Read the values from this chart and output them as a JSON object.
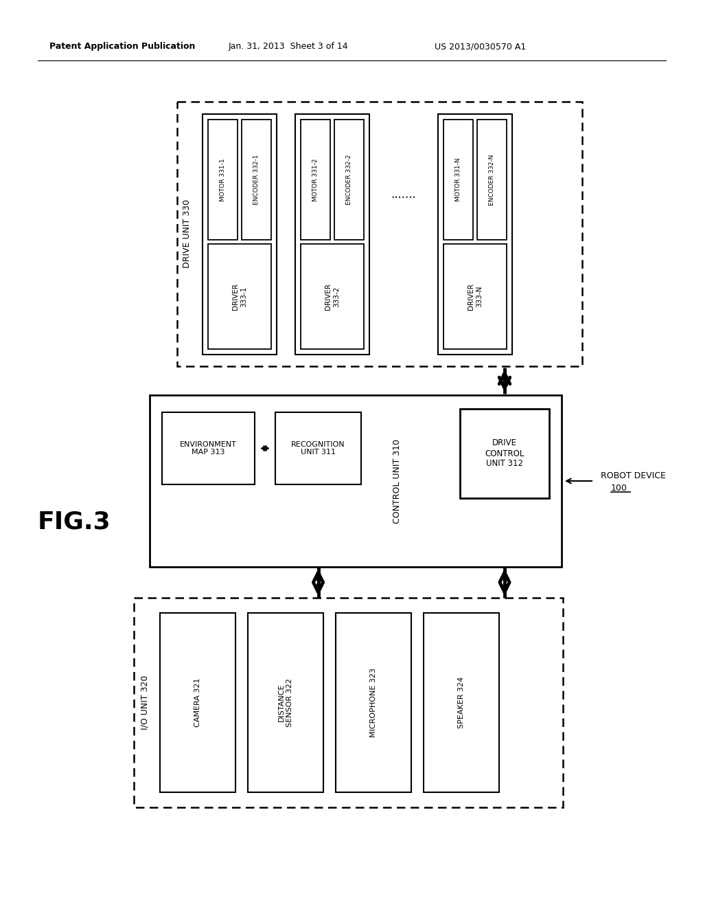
{
  "bg_color": "#ffffff",
  "header_line1": "Patent Application Publication",
  "header_line2": "Jan. 31, 2013  Sheet 3 of 14",
  "header_line3": "US 2013/0030570 A1",
  "fig_label": "FIG.3",
  "drive_unit_label": "DRIVE UNIT 330",
  "control_unit_label": "CONTROL UNIT 310",
  "io_unit_label": "I/O UNIT 320",
  "robot_label": "ROBOT DEVICE",
  "robot_num": "100",
  "env_map_label": "ENVIRONMENT\nMAP 313",
  "recognition_label": "RECOGNITION\nUNIT 311",
  "drive_control_label": "DRIVE\nCONTROL\nUNIT 312",
  "camera_label": "CAMERA 321",
  "distance_label": "DISTANCE\nSENSOR 322",
  "microphone_label": "MICROPHONE 323",
  "speaker_label": "SPEAKER 324",
  "motor1_label": "MOTOR 331-1",
  "encoder1_label": "ENCODER 332-1",
  "driver1_label": "DRIVER\n333-1",
  "motor2_label": "MOTOR 331-2",
  "encoder2_label": "ENCODER 332-2",
  "driver2_label": "DRIVER\n333-2",
  "motorN_label": "MOTOR 331-N",
  "encoderN_label": "ENCODER 332-N",
  "driverN_label": "DRIVER\n333-N",
  "dots": ".......",
  "font_color": "#000000"
}
